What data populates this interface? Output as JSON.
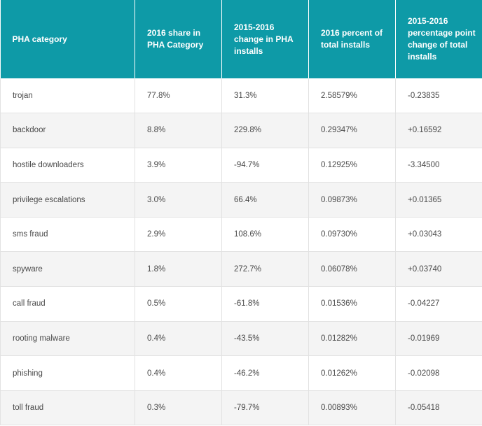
{
  "table": {
    "headers": [
      "PHA category",
      "2016 share in PHA Category",
      "2015-2016 change in PHA installs",
      "2016 percent of total installs",
      "2015-2016 percentage point change of total installs"
    ],
    "rows": [
      [
        "trojan",
        "77.8%",
        "31.3%",
        "2.58579%",
        "-0.23835"
      ],
      [
        "backdoor",
        "8.8%",
        "229.8%",
        "0.29347%",
        "+0.16592"
      ],
      [
        "hostile downloaders",
        "3.9%",
        "-94.7%",
        "0.12925%",
        "-3.34500"
      ],
      [
        "privilege escalations",
        "3.0%",
        "66.4%",
        "0.09873%",
        "+0.01365"
      ],
      [
        "sms fraud",
        "2.9%",
        "108.6%",
        "0.09730%",
        "+0.03043"
      ],
      [
        "spyware",
        "1.8%",
        "272.7%",
        "0.06078%",
        "+0.03740"
      ],
      [
        "call fraud",
        "0.5%",
        "-61.8%",
        "0.01536%",
        "-0.04227"
      ],
      [
        "rooting malware",
        "0.4%",
        "-43.5%",
        "0.01282%",
        "-0.01969"
      ],
      [
        "phishing",
        "0.4%",
        "-46.2%",
        "0.01262%",
        "-0.02098"
      ],
      [
        "toll fraud",
        "0.3%",
        "-79.7%",
        "0.00893%",
        "-0.05418"
      ]
    ]
  },
  "colors": {
    "header_bg": "#0e9aa7",
    "header_text": "#ffffff",
    "row_alt_bg": "#f4f4f4",
    "body_text": "#4a4a4a"
  }
}
